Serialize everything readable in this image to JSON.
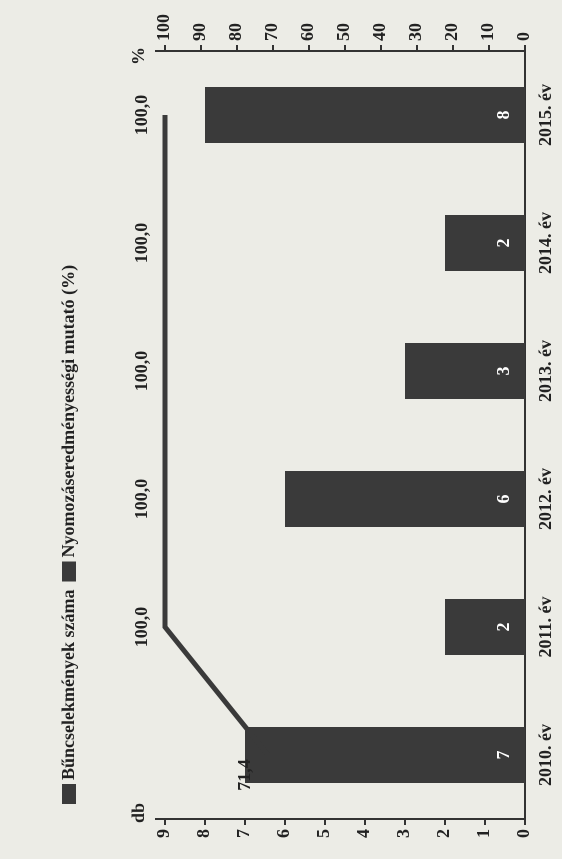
{
  "chart_data": {
    "type": "bar-line",
    "y_label": "db",
    "y2_label": "%",
    "categories": [
      "2010. év",
      "2011. év",
      "2012. év",
      "2013. év",
      "2014. év",
      "2015. év"
    ],
    "series": [
      {
        "name": "Bűncselekmények száma",
        "type": "bar",
        "color": "#3a3a3a",
        "values": [
          7,
          2,
          6,
          3,
          2,
          8
        ]
      },
      {
        "name": "Nyomozáseredményességi mutató (%)",
        "type": "line",
        "axis": "y2",
        "color": "#3a3a3a",
        "values": [
          71.4,
          100,
          100,
          100,
          100,
          100
        ],
        "value_labels": [
          "71,4",
          "100,0",
          "100,0",
          "100,0",
          "100,0",
          "100,0"
        ]
      }
    ],
    "ylim": [
      0,
      9
    ],
    "yticks": [
      0,
      1,
      2,
      3,
      4,
      5,
      6,
      7,
      8,
      9
    ],
    "y2lim": [
      0,
      100
    ],
    "y2ticks": [
      0,
      10,
      20,
      30,
      40,
      50,
      60,
      70,
      80,
      90,
      100
    ],
    "legend": "top"
  }
}
